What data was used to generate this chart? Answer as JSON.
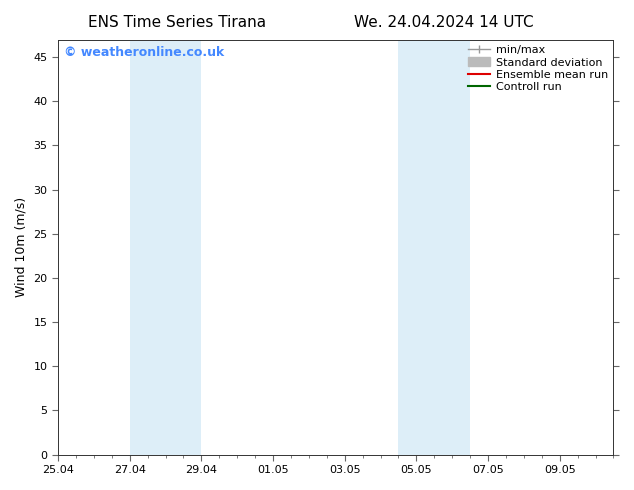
{
  "title_left": "ENS Time Series Tirana",
  "title_right": "We. 24.04.2024 14 UTC",
  "ylabel": "Wind 10m (m/s)",
  "ylim": [
    0,
    47
  ],
  "yticks": [
    0,
    5,
    10,
    15,
    20,
    25,
    30,
    35,
    40,
    45
  ],
  "xtick_labels": [
    "25.04",
    "27.04",
    "29.04",
    "01.05",
    "03.05",
    "05.05",
    "07.05",
    "09.05"
  ],
  "xtick_positions": [
    0,
    2,
    4,
    6,
    8,
    10,
    12,
    14
  ],
  "xlim": [
    0,
    15.5
  ],
  "shade_bands": [
    {
      "x_start": 2,
      "x_end": 4,
      "color": "#ddeef8"
    },
    {
      "x_start": 9.5,
      "x_end": 11.5,
      "color": "#ddeef8"
    }
  ],
  "watermark_text": "© weatheronline.co.uk",
  "watermark_color": "#4488ff",
  "legend_items": [
    {
      "label": "min/max",
      "color": "#999999",
      "style": "minmax"
    },
    {
      "label": "Standard deviation",
      "color": "#bbbbbb",
      "style": "stddev"
    },
    {
      "label": "Ensemble mean run",
      "color": "#dd0000",
      "style": "line"
    },
    {
      "label": "Controll run",
      "color": "#006600",
      "style": "line"
    }
  ],
  "background_color": "#ffffff",
  "title_fontsize": 11,
  "ylabel_fontsize": 9,
  "tick_fontsize": 8,
  "legend_fontsize": 8,
  "watermark_fontsize": 9
}
